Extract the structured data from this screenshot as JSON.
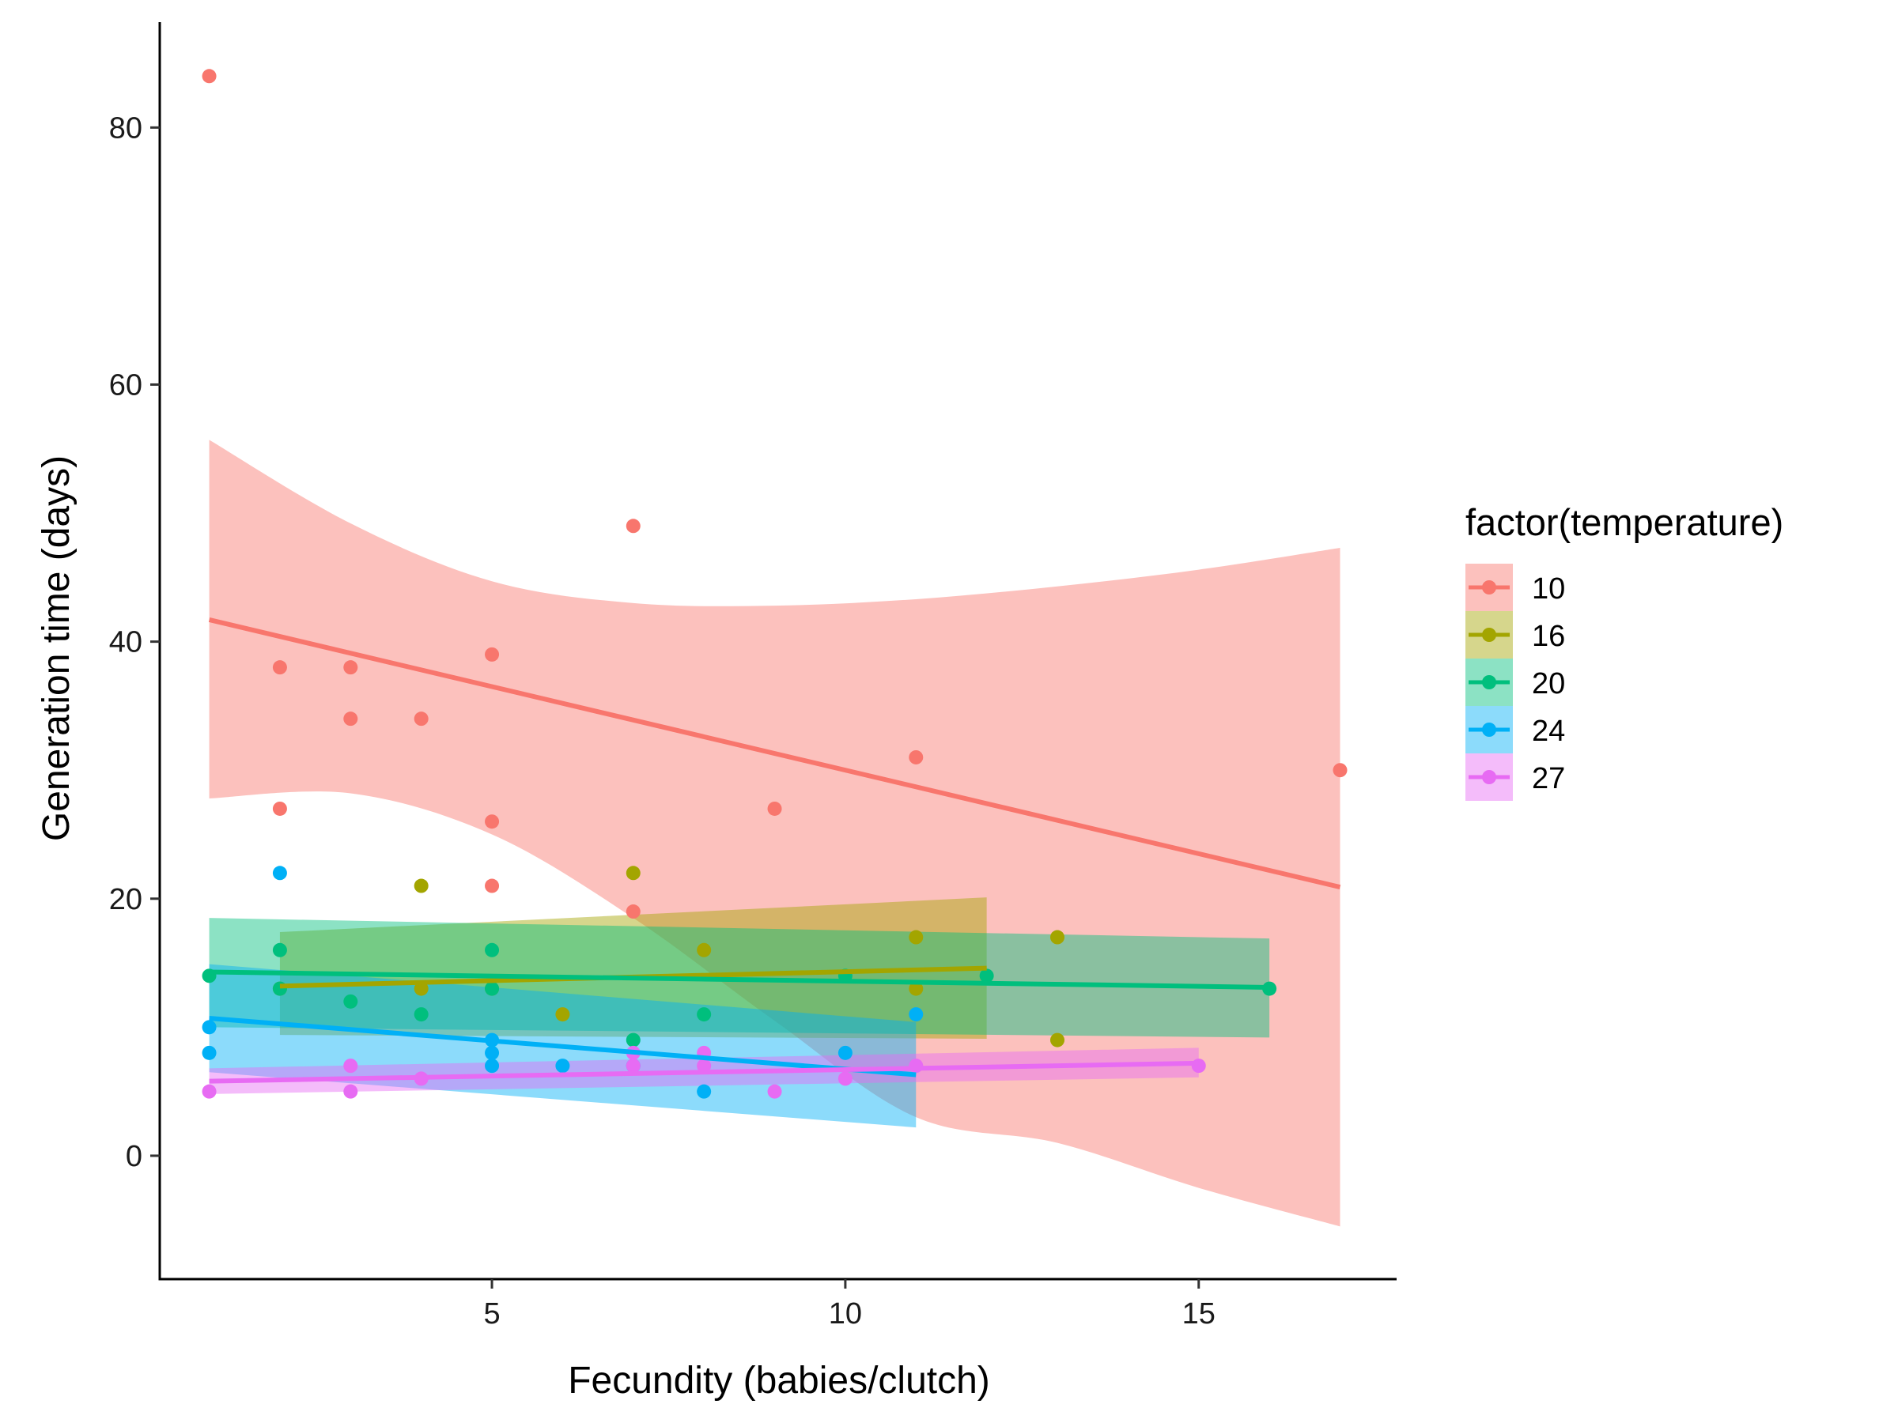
{
  "chart_data": {
    "type": "scatter",
    "xlabel": "Fecundity (babies/clutch)",
    "ylabel": "Generation time (days)",
    "xlim": [
      0.3,
      17.8
    ],
    "ylim": [
      -9.6,
      88.2
    ],
    "x_ticks": [
      5,
      10,
      15
    ],
    "y_ticks": [
      0,
      20,
      40,
      60,
      80
    ],
    "grid": false,
    "legend": {
      "title": "factor(temperature)",
      "position": "right"
    },
    "series": [
      {
        "name": "10",
        "color": "#F8766D",
        "points": [
          [
            1,
            84
          ],
          [
            2,
            38
          ],
          [
            2,
            27
          ],
          [
            3,
            38
          ],
          [
            3,
            34
          ],
          [
            4,
            34
          ],
          [
            5,
            39
          ],
          [
            5,
            26
          ],
          [
            5,
            21
          ],
          [
            7,
            49
          ],
          [
            7,
            19
          ],
          [
            9,
            27
          ],
          [
            11,
            31
          ],
          [
            17,
            30
          ]
        ],
        "fit": {
          "x": [
            1,
            17
          ],
          "y": [
            41.7,
            20.9
          ]
        },
        "band": {
          "x": [
            1,
            3,
            5,
            7,
            9,
            11,
            13,
            15,
            17
          ],
          "lower": [
            27.8,
            28.2,
            25.0,
            18.5,
            10.5,
            3.0,
            1.0,
            -2.5,
            -5.5
          ],
          "upper": [
            55.7,
            49.2,
            44.7,
            43.0,
            42.8,
            43.3,
            44.3,
            45.6,
            47.3
          ]
        }
      },
      {
        "name": "16",
        "color": "#A3A500",
        "points": [
          [
            2,
            13
          ],
          [
            4,
            21
          ],
          [
            4,
            13
          ],
          [
            5,
            13
          ],
          [
            6,
            11
          ],
          [
            7,
            22
          ],
          [
            8,
            16
          ],
          [
            11,
            17
          ],
          [
            11,
            13
          ],
          [
            13,
            17
          ],
          [
            13,
            9
          ]
        ],
        "fit": {
          "x": [
            2,
            12
          ],
          "y": [
            13.2,
            14.6
          ]
        },
        "band": {
          "x": [
            2,
            12
          ],
          "lower": [
            9.4,
            9.1
          ],
          "upper": [
            17.4,
            20.1
          ]
        }
      },
      {
        "name": "20",
        "color": "#00BF7D",
        "points": [
          [
            1,
            14
          ],
          [
            2,
            16
          ],
          [
            2,
            13
          ],
          [
            3,
            12
          ],
          [
            4,
            11
          ],
          [
            5,
            16
          ],
          [
            5,
            13
          ],
          [
            7,
            9
          ],
          [
            8,
            11
          ],
          [
            10,
            14
          ],
          [
            12,
            14
          ],
          [
            16,
            13
          ]
        ],
        "fit": {
          "x": [
            1,
            16
          ],
          "y": [
            14.3,
            13.1
          ]
        },
        "band": {
          "x": [
            1,
            16
          ],
          "lower": [
            10.0,
            9.2
          ],
          "upper": [
            18.5,
            16.9
          ]
        }
      },
      {
        "name": "24",
        "color": "#00B0F6",
        "points": [
          [
            1,
            10
          ],
          [
            1,
            8
          ],
          [
            2,
            22
          ],
          [
            5,
            9
          ],
          [
            5,
            8
          ],
          [
            5,
            7
          ],
          [
            6,
            7
          ],
          [
            7,
            7
          ],
          [
            8,
            5
          ],
          [
            10,
            8
          ],
          [
            11,
            11
          ]
        ],
        "fit": {
          "x": [
            1,
            11
          ],
          "y": [
            10.7,
            6.3
          ]
        },
        "band": {
          "x": [
            1,
            11
          ],
          "lower": [
            6.5,
            2.2
          ],
          "upper": [
            14.9,
            10.4
          ]
        }
      },
      {
        "name": "27",
        "color": "#E76BF3",
        "points": [
          [
            1,
            5
          ],
          [
            3,
            7
          ],
          [
            3,
            5
          ],
          [
            4,
            6
          ],
          [
            7,
            7
          ],
          [
            7,
            8
          ],
          [
            8,
            8
          ],
          [
            8,
            7
          ],
          [
            9,
            5
          ],
          [
            10,
            6
          ],
          [
            11,
            7
          ],
          [
            15,
            7
          ]
        ],
        "fit": {
          "x": [
            1,
            15
          ],
          "y": [
            5.8,
            7.2
          ]
        },
        "band": {
          "x": [
            1,
            15
          ],
          "lower": [
            4.8,
            6.1
          ],
          "upper": [
            6.8,
            8.4
          ]
        }
      }
    ]
  }
}
